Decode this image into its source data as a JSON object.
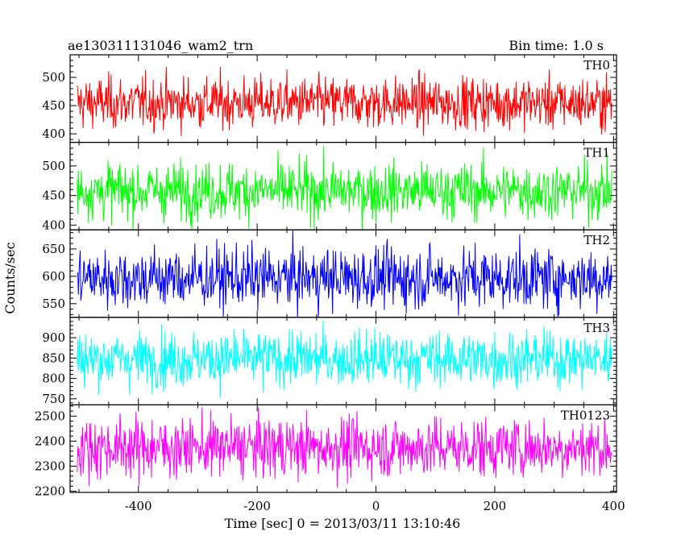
{
  "chart_data": {
    "type": "line",
    "title": "ae130311131046_wam2_trn",
    "bin_time": "Bin time: 1.0 s",
    "xlabel": "Time [sec] 0 = 2013/03/11 13:10:46",
    "ylabel": "Counts/sec",
    "xlim": [
      -515,
      405
    ],
    "x_ticks": [
      -400,
      -200,
      0,
      200,
      400
    ],
    "data_x_range": [
      -503,
      397
    ],
    "panels": [
      {
        "name": "TH0",
        "color": "#ff0000",
        "ylim": [
          385,
          540
        ],
        "y_ticks": [
          400,
          450,
          500
        ],
        "mean": 455,
        "sigma": 23
      },
      {
        "name": "TH1",
        "color": "#00ff00",
        "ylim": [
          392,
          540
        ],
        "y_ticks": [
          400,
          450,
          500
        ],
        "mean": 458,
        "sigma": 24
      },
      {
        "name": "TH2",
        "color": "#0000ff",
        "ylim": [
          525,
          685
        ],
        "y_ticks": [
          550,
          600,
          650
        ],
        "mean": 597,
        "sigma": 28
      },
      {
        "name": "TH3",
        "color": "#00ffff",
        "ylim": [
          735,
          950
        ],
        "y_ticks": [
          750,
          800,
          850,
          900
        ],
        "mean": 848,
        "sigma": 34
      },
      {
        "name": "TH0123",
        "color": "#ff00ff",
        "ylim": [
          2195,
          2545
        ],
        "y_ticks": [
          2200,
          2300,
          2400,
          2500
        ],
        "mean": 2375,
        "sigma": 60
      }
    ]
  }
}
